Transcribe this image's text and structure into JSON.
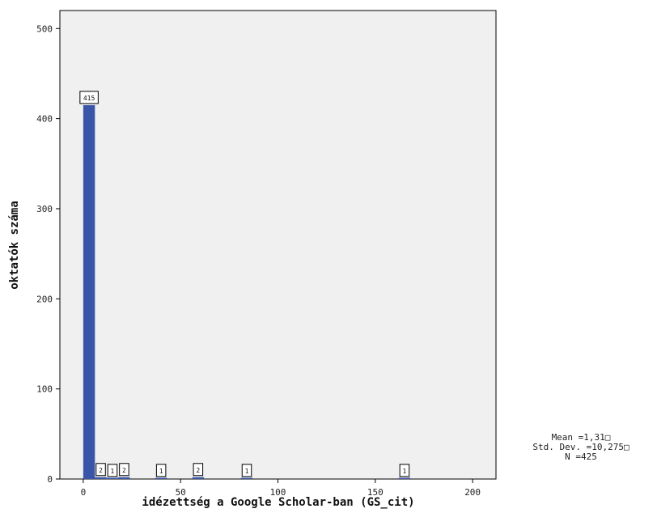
{
  "chart_data": {
    "type": "bar",
    "xlabel": "idézettség a Google Scholar-ban (GS_cit)",
    "ylabel": "oktatók száma",
    "xlim": [
      -12,
      212
    ],
    "ylim": [
      0,
      520
    ],
    "x_ticks": [
      "0",
      "50",
      "100",
      "150",
      "200"
    ],
    "y_ticks": [
      "0",
      "100",
      "200",
      "300",
      "400",
      "500"
    ],
    "bin_width": 6,
    "bars": [
      {
        "x": 3,
        "value": 415
      },
      {
        "x": 9,
        "value": 2
      },
      {
        "x": 15,
        "value": 1
      },
      {
        "x": 21,
        "value": 2
      },
      {
        "x": 40,
        "value": 1
      },
      {
        "x": 59,
        "value": 2
      },
      {
        "x": 84,
        "value": 1
      },
      {
        "x": 165,
        "value": 1
      }
    ],
    "bar_color": "#3a55a8",
    "plot_background": "#f0f0f0",
    "grid": false,
    "stats": {
      "mean": "Mean =1,31□",
      "std": "Std. Dev. =10,275□",
      "n": "N =425"
    }
  }
}
